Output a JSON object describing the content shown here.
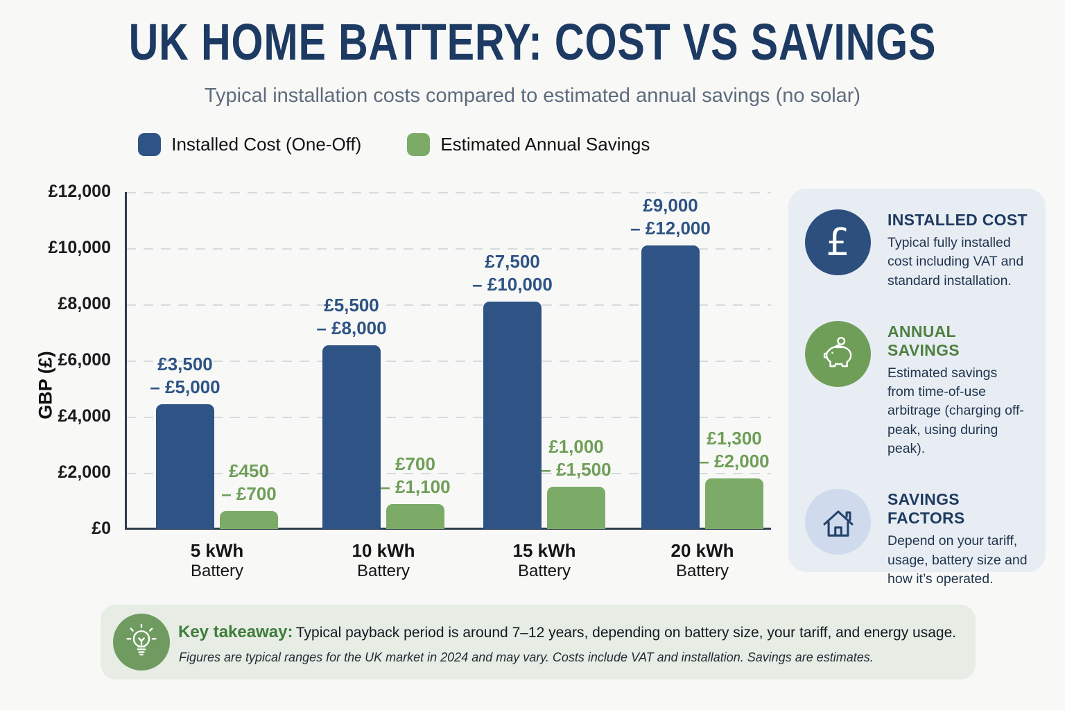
{
  "header": {
    "title": "UK HOME BATTERY: COST VS SAVINGS",
    "subtitle": "Typical installation costs compared to estimated annual savings (no solar)"
  },
  "legend": {
    "items": [
      {
        "label": "Installed Cost (One-Off)",
        "color": "#2e5384"
      },
      {
        "label": "Estimated Annual Savings",
        "color": "#7cab68"
      }
    ]
  },
  "chart_data": {
    "type": "bar",
    "title": "UK Home Battery: Cost vs Savings",
    "categories": [
      "5 kWh",
      "10 kWh",
      "15 kWh",
      "20 kWh"
    ],
    "category_sublabel": "Battery",
    "series": [
      {
        "name": "Installed Cost (One-Off)",
        "color": "#2e5384",
        "label_color": "#2e5384",
        "values": [
          4450,
          6550,
          8100,
          10100
        ],
        "range_labels": [
          [
            "£3,500",
            "– £5,000"
          ],
          [
            "£5,500",
            "– £8,000"
          ],
          [
            "£7,500",
            "– £10,000"
          ],
          [
            "£9,000",
            "– £12,000"
          ]
        ]
      },
      {
        "name": "Estimated Annual Savings",
        "color": "#7cab68",
        "label_color": "#6f9e58",
        "values": [
          650,
          900,
          1500,
          1800
        ],
        "range_labels": [
          [
            "£450",
            "– £700"
          ],
          [
            "£700",
            "– £1,100"
          ],
          [
            "£1,000",
            "– £1,500"
          ],
          [
            "£1,300",
            "– £2,000"
          ]
        ]
      }
    ],
    "xlabel": "",
    "ylabel": "GBP (£)",
    "ylim": [
      0,
      12000
    ],
    "yticks": [
      "£12,000",
      "£10,000",
      "£8,000",
      "£6,000",
      "£4,000",
      "£2,000",
      "£0"
    ],
    "grid": "horizontal-dashed",
    "legend_position": "top-center"
  },
  "info_panel": {
    "items": [
      {
        "icon": "pound-icon",
        "icon_bg": "#2c4f7d",
        "heading": "INSTALLED COST",
        "heading_color": "#1e3a5f",
        "body": "Typical fully installed cost including VAT and standard installation."
      },
      {
        "icon": "piggy-bank-icon",
        "icon_bg": "#6f9e58",
        "heading": "ANNUAL SAVINGS",
        "heading_color": "#4f8040",
        "body": "Estimated savings from time-of-use arbitrage (charging off-peak, using during peak)."
      },
      {
        "icon": "house-icon",
        "icon_bg": "#cfdbed",
        "heading": "SAVINGS FACTORS",
        "heading_color": "#1e3a5f",
        "body": "Depend on your tariff, usage, battery size and how it’s operated."
      }
    ]
  },
  "takeaway": {
    "label": "Key takeaway:",
    "text": "Typical payback period is around 7–12 years, depending on battery size, your tariff, and energy usage.",
    "footnote": "Figures are typical ranges for the UK market in 2024 and may vary. Costs include VAT and installation. Savings are estimates."
  }
}
